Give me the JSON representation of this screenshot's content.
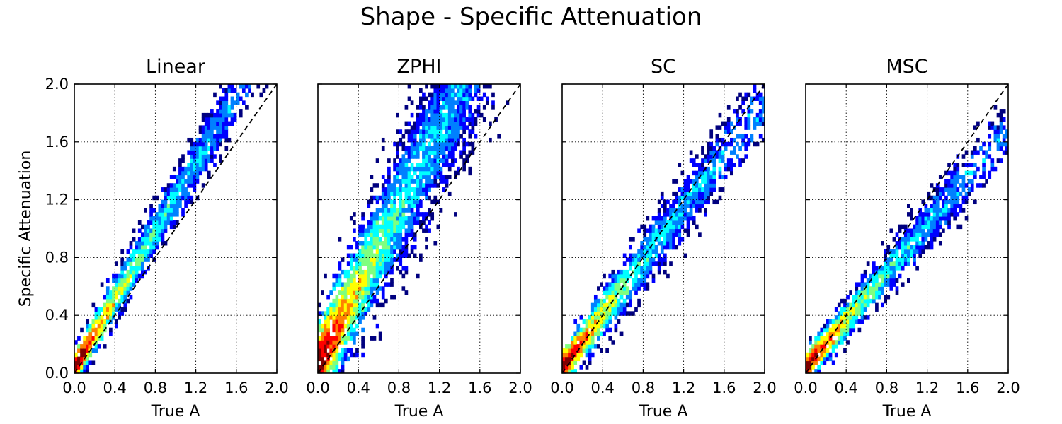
{
  "figure": {
    "title": "Shape - Specific Attenuation"
  },
  "colors": {
    "colormap": [
      "#00007f",
      "#0000ff",
      "#0080ff",
      "#00ffff",
      "#7fff7f",
      "#ffff00",
      "#ff8000",
      "#ff0000",
      "#7f0000"
    ],
    "reference_line": "#000000",
    "grid": "#000000"
  },
  "chart_data": [
    {
      "type": "heatmap",
      "title": "Linear",
      "xlabel": "True A",
      "ylabel": "Specific Attenuation",
      "xlim": [
        0.0,
        2.0
      ],
      "ylim": [
        0.0,
        2.0
      ],
      "xticks": [
        "0.0",
        "0.4",
        "0.8",
        "1.2",
        "1.6",
        "2.0"
      ],
      "yticks": [
        "0.0",
        "0.4",
        "0.8",
        "1.2",
        "1.6",
        "2.0"
      ],
      "grid": true,
      "reference_line": {
        "style": "dashed",
        "from": [
          0,
          0
        ],
        "to": [
          2,
          2
        ]
      },
      "density_ridge": {
        "slope": 1.18,
        "intercept": 0.04,
        "spread_y": 0.11,
        "x_extent": [
          0.0,
          2.0
        ]
      }
    },
    {
      "type": "heatmap",
      "title": "ZPHI",
      "xlabel": "True A",
      "ylabel": "",
      "xlim": [
        0.0,
        2.0
      ],
      "ylim": [
        0.0,
        2.0
      ],
      "xticks": [
        "0.0",
        "0.4",
        "0.8",
        "1.2",
        "1.6",
        "2.0"
      ],
      "yticks": [],
      "grid": true,
      "reference_line": {
        "style": "dashed",
        "from": [
          0,
          0
        ],
        "to": [
          2,
          2
        ]
      },
      "density_ridge": {
        "slope": 1.35,
        "intercept": 0.06,
        "spread_y": 0.26,
        "x_extent": [
          0.0,
          2.0
        ]
      }
    },
    {
      "type": "heatmap",
      "title": "SC",
      "xlabel": "True A",
      "ylabel": "",
      "xlim": [
        0.0,
        2.0
      ],
      "ylim": [
        0.0,
        2.0
      ],
      "xticks": [
        "0.0",
        "0.4",
        "0.8",
        "1.2",
        "1.6",
        "2.0"
      ],
      "yticks": [],
      "grid": true,
      "reference_line": {
        "style": "dashed",
        "from": [
          0,
          0
        ],
        "to": [
          2,
          2
        ]
      },
      "density_ridge": {
        "slope": 0.92,
        "intercept": 0.04,
        "spread_y": 0.12,
        "x_extent": [
          0.0,
          2.0
        ]
      }
    },
    {
      "type": "heatmap",
      "title": "MSC",
      "xlabel": "True A",
      "ylabel": "",
      "xlim": [
        0.0,
        2.0
      ],
      "ylim": [
        0.0,
        2.0
      ],
      "xticks": [
        "0.0",
        "0.4",
        "0.8",
        "1.2",
        "1.6",
        "2.0"
      ],
      "yticks": [],
      "grid": true,
      "reference_line": {
        "style": "dashed",
        "from": [
          0,
          0
        ],
        "to": [
          2,
          2
        ]
      },
      "density_ridge": {
        "slope": 0.82,
        "intercept": 0.04,
        "spread_y": 0.1,
        "x_extent": [
          0.0,
          2.0
        ]
      }
    }
  ]
}
